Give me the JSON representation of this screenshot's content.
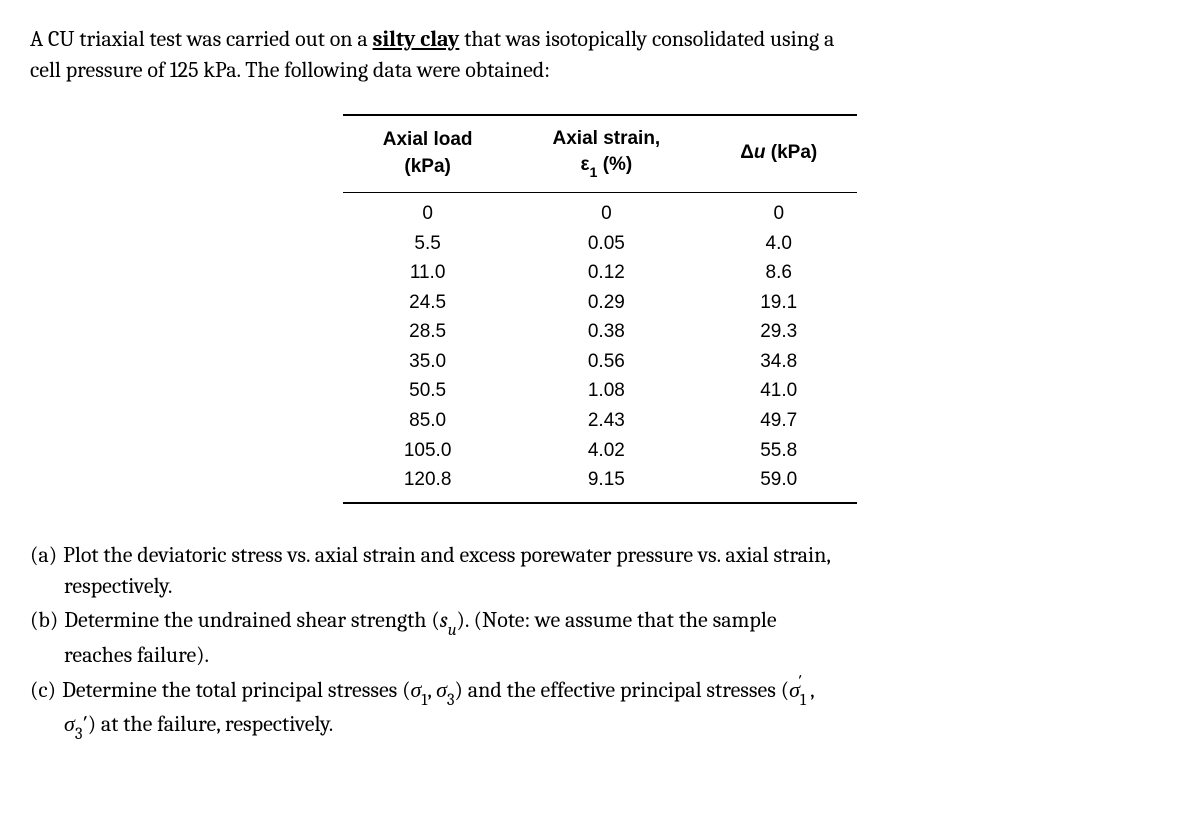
{
  "intro": {
    "line1_pre": "A CU triaxial test was carried out on a ",
    "line1_underline": "silty clay",
    "line1_post": " that was isotopically consolidated using a",
    "line2": "cell pressure of 125 kPa. The following data were obtained:"
  },
  "table": {
    "headers": {
      "col1_l1": "Axial load",
      "col1_l2": "(kPa)",
      "col2_l1": "Axial strain,",
      "col2_l2_sym": "ε",
      "col2_l2_sub": "1",
      "col2_l2_unit": " (%)",
      "col3_sym": "Δ",
      "col3_var": "u",
      "col3_unit": " (kPa)"
    },
    "rows": [
      [
        "0",
        "0",
        "0"
      ],
      [
        "5.5",
        "0.05",
        "4.0"
      ],
      [
        "11.0",
        "0.12",
        "8.6"
      ],
      [
        "24.5",
        "0.29",
        "19.1"
      ],
      [
        "28.5",
        "0.38",
        "29.3"
      ],
      [
        "35.0",
        "0.56",
        "34.8"
      ],
      [
        "50.5",
        "1.08",
        "41.0"
      ],
      [
        "85.0",
        "2.43",
        "49.7"
      ],
      [
        "105.0",
        "4.02",
        "55.8"
      ],
      [
        "120.8",
        "9.15",
        "59.0"
      ]
    ]
  },
  "questions": {
    "a": {
      "label": "(a)",
      "l1": "Plot the deviatoric stress vs. axial strain and excess porewater pressure vs. axial strain,",
      "l2": "respectively."
    },
    "b": {
      "label": "(b)",
      "pre": "Determine  the  undrained  shear  strength  (",
      "var": "s",
      "sub": "u",
      "post": ").  (Note:  we  assume  that  the  sample",
      "l2": "reaches failure)."
    },
    "c": {
      "label": "(c)",
      "pre": "Determine the total principal stresses (",
      "s1": "σ",
      "s1sub": "1",
      "comma1": ", ",
      "s3": "σ",
      "s3sub": "3",
      "mid": ") and the  effective principal stresses (",
      "s1p": "σ",
      "s1psub": "1",
      "s1pprime": "′",
      "comma2": ",",
      "l2_s3p": "σ",
      "l2_s3psub": "3",
      "l2_s3pprime": "′",
      "l2_rest": ") at the failure, respectively."
    }
  }
}
